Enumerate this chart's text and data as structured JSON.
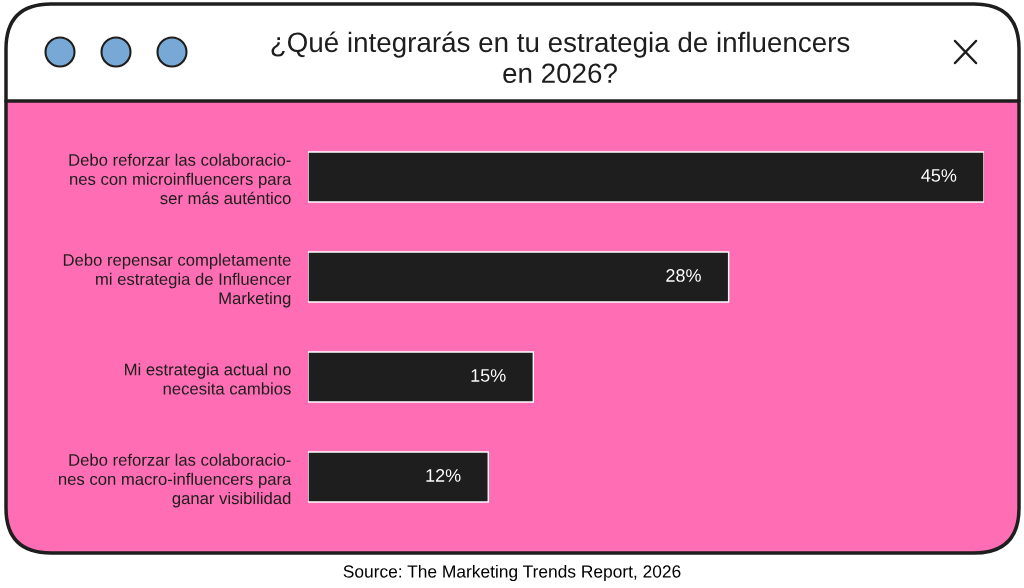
{
  "chart_data": {
    "type": "bar",
    "orientation": "horizontal",
    "title": "¿Qué integrarás en tu estrategia de influencers\nen 2026?",
    "categories": [
      "Debo reforzar las colaboracio-\nnes con microinfluencers para\nser más auténtico",
      "Debo repensar completamente\nmi estrategia de Influencer\nMarketing",
      "Mi estrategia actual no\nnecesita cambios",
      "Debo reforzar las colaboracio-\nnes con macro-influencers para\nganar visibilidad"
    ],
    "values": [
      45,
      28,
      15,
      12
    ],
    "color": "#1e1e1e",
    "value_labels": [
      "45%",
      "28%",
      "15%",
      "12%"
    ],
    "xlim": [
      0,
      45
    ],
    "tick_labels": "y",
    "annotations": [
      "Source: The Marketing Trends Report, 2026"
    ]
  }
}
